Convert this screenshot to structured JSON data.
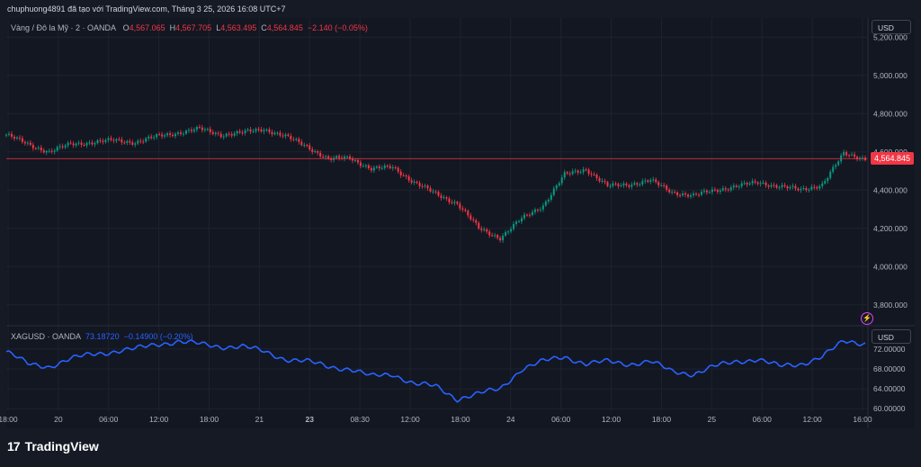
{
  "header": {
    "text": "chuphuong4891 đã tạo với TradingView.com, Tháng 3 25, 2026 16:08 UTC+7"
  },
  "main_pane": {
    "symbol": "Vàng / Đô la Mỹ · 2 · OANDA",
    "o_label": "O",
    "o_value": "4,567.065",
    "h_label": "H",
    "h_value": "4,567.705",
    "l_label": "L",
    "l_value": "4,563.495",
    "c_label": "C",
    "c_value": "4,564.845",
    "change": "−2.140 (−0.05%)",
    "currency": "USD",
    "last_price_label": "4,564.845",
    "up_color": "#089981",
    "down_color": "#f23645"
  },
  "sub_pane": {
    "symbol": "XAGUSD · OANDA",
    "value": "73.18720",
    "change": "−0.14900 (−0.20%)",
    "currency": "USD",
    "line_color": "#2962ff"
  },
  "brand": {
    "logo_mark": "17",
    "name": "TradingView"
  },
  "icons": {
    "alert": "lightning-icon"
  },
  "chart_data": [
    {
      "type": "line",
      "title": "Vàng / Đô la Mỹ · 2 · OANDA",
      "style": "candlestick",
      "ylim": [
        3700,
        5300
      ],
      "y_ticks": [
        "5,200.000",
        "5,000.000",
        "4,800.000",
        "4,600.000",
        "4,400.000",
        "4,200.000",
        "4,000.000",
        "3,800.000"
      ],
      "y_tick_values": [
        5200,
        5000,
        4800,
        4600,
        4400,
        4200,
        4000,
        3800
      ],
      "last_price": 4564.845,
      "x": [
        0,
        5,
        10,
        15,
        20,
        25,
        30,
        35,
        40,
        45,
        50,
        55,
        60,
        65,
        70,
        75,
        80,
        85,
        90,
        95,
        100,
        105,
        110,
        115,
        120,
        125,
        130,
        135,
        140,
        145,
        150,
        155,
        160,
        165,
        170,
        175,
        180,
        185,
        190,
        195,
        200
      ],
      "values": [
        4690,
        4640,
        4600,
        4640,
        4650,
        4660,
        4650,
        4680,
        4700,
        4720,
        4690,
        4700,
        4720,
        4680,
        4630,
        4560,
        4570,
        4510,
        4520,
        4440,
        4380,
        4330,
        4200,
        4150,
        4250,
        4320,
        4480,
        4510,
        4420,
        4430,
        4450,
        4390,
        4370,
        4400,
        4420,
        4440,
        4420,
        4400,
        4430,
        4590,
        4565
      ]
    },
    {
      "type": "line",
      "title": "XAGUSD · OANDA",
      "ylim": [
        59.5,
        76.5
      ],
      "y_ticks": [
        "72.00000",
        "68.00000",
        "64.00000",
        "60.00000"
      ],
      "y_tick_values": [
        72,
        68,
        64,
        60
      ],
      "x_ticks": [
        "18:00",
        "20",
        "06:00",
        "12:00",
        "18:00",
        "21",
        "23",
        "08:30",
        "12:00",
        "18:00",
        "24",
        "06:00",
        "12:00",
        "18:00",
        "25",
        "06:00",
        "12:00",
        "16:00"
      ],
      "x": [
        0,
        5,
        10,
        15,
        20,
        25,
        30,
        35,
        40,
        45,
        50,
        55,
        60,
        65,
        70,
        75,
        80,
        85,
        90,
        95,
        100,
        105,
        110,
        115,
        120,
        125,
        130,
        135,
        140,
        145,
        150,
        155,
        160,
        165,
        170,
        175,
        180,
        185,
        190,
        195,
        200
      ],
      "values": [
        71.5,
        69.0,
        68.5,
        70.0,
        71.0,
        71.5,
        72.0,
        73.0,
        73.5,
        73.0,
        72.5,
        72.5,
        71.5,
        70.0,
        69.5,
        68.5,
        68.0,
        66.5,
        67.0,
        65.0,
        64.5,
        62.0,
        63.0,
        64.0,
        68.0,
        69.5,
        70.5,
        69.0,
        69.5,
        69.0,
        69.5,
        67.5,
        67.0,
        68.5,
        69.5,
        70.0,
        68.5,
        69.0,
        70.5,
        73.5,
        73.2
      ]
    }
  ]
}
